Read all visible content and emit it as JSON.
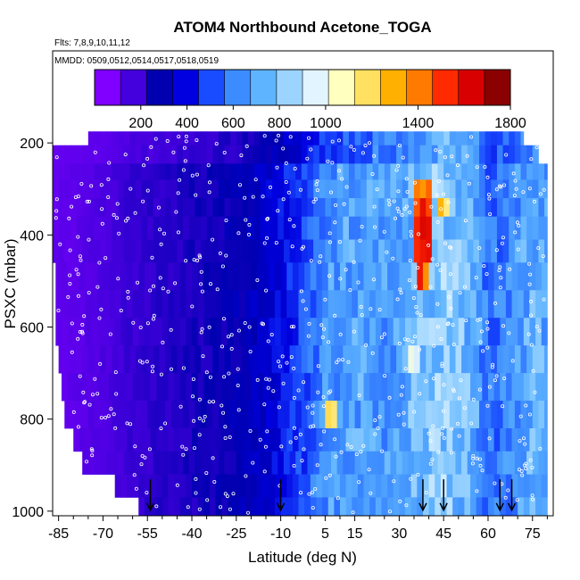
{
  "chart_data": {
    "type": "heatmap",
    "title": "ATOM4 Northbound Acetone_TOGA",
    "subtitle_flights": "Flts: 7,8,9,10,11,12",
    "subtitle_dates": "MMDD: 0509,0512,0514,0517,0518,0519",
    "xlabel": "Latitude (deg N)",
    "ylabel": "PSXC (mbar)",
    "x_ticks": [
      -85,
      -70,
      -55,
      -40,
      -25,
      -10,
      5,
      15,
      30,
      45,
      60,
      75
    ],
    "y_ticks": [
      200,
      400,
      600,
      800,
      1000
    ],
    "xlim": [
      -87,
      82
    ],
    "ylim": [
      1010,
      0
    ],
    "colorbar": {
      "min": 0,
      "max": 1800,
      "tick_labels": [
        200,
        400,
        600,
        800,
        1000,
        1400,
        1800
      ],
      "colors": [
        "#7f00ff",
        "#4400dd",
        "#0000b0",
        "#0000e0",
        "#1a4cff",
        "#3d8cff",
        "#5fb4ff",
        "#9cd4ff",
        "#e2f4ff",
        "#ffffbf",
        "#ffe060",
        "#ffb000",
        "#ff7a00",
        "#ff2a00",
        "#d80000",
        "#8b0000"
      ]
    },
    "pressure_bands": [
      {
        "p_top": 175,
        "p_bot": 205
      },
      {
        "p_top": 205,
        "p_bot": 245
      },
      {
        "p_top": 245,
        "p_bot": 280
      },
      {
        "p_top": 280,
        "p_bot": 320
      },
      {
        "p_top": 320,
        "p_bot": 360
      },
      {
        "p_top": 360,
        "p_bot": 410
      },
      {
        "p_top": 410,
        "p_bot": 460
      },
      {
        "p_top": 460,
        "p_bot": 520
      },
      {
        "p_top": 520,
        "p_bot": 580
      },
      {
        "p_top": 580,
        "p_bot": 640
      },
      {
        "p_top": 640,
        "p_bot": 700
      },
      {
        "p_top": 700,
        "p_bot": 760
      },
      {
        "p_top": 760,
        "p_bot": 820
      },
      {
        "p_top": 820,
        "p_bot": 870
      },
      {
        "p_top": 870,
        "p_bot": 920
      },
      {
        "p_top": 920,
        "p_bot": 970
      },
      {
        "p_top": 970,
        "p_bot": 1010
      }
    ],
    "band_lat_ranges": [
      [
        -75,
        72
      ],
      [
        -87,
        77
      ],
      [
        -87,
        80
      ],
      [
        -87,
        80
      ],
      [
        -87,
        80
      ],
      [
        -87,
        80
      ],
      [
        -87,
        80
      ],
      [
        -86,
        80
      ],
      [
        -86,
        80
      ],
      [
        -86,
        80
      ],
      [
        -85,
        80
      ],
      [
        -84,
        80
      ],
      [
        -83,
        80
      ],
      [
        -80,
        80
      ],
      [
        -77,
        80
      ],
      [
        -66,
        80
      ],
      [
        -58,
        80
      ]
    ],
    "lat_profile": {
      "lats": [
        -87,
        -80,
        -70,
        -60,
        -52,
        -45,
        -40,
        -30,
        -20,
        -10,
        0,
        5,
        10,
        15,
        20,
        25,
        30,
        35,
        40,
        45,
        50,
        55,
        60,
        65,
        70,
        75,
        80
      ],
      "values": [
        60,
        70,
        100,
        140,
        160,
        180,
        190,
        220,
        260,
        360,
        500,
        620,
        640,
        660,
        650,
        640,
        660,
        720,
        760,
        780,
        740,
        700,
        520,
        560,
        620,
        700,
        660
      ]
    },
    "hotspots": [
      {
        "lat": 38,
        "p_top": 300,
        "p_bot": 500,
        "value": 1600
      },
      {
        "lat": 45,
        "p_top": 310,
        "p_bot": 350,
        "value": 1300
      },
      {
        "lat": 7,
        "p_top": 760,
        "p_bot": 820,
        "value": 1200
      },
      {
        "lat": 35,
        "p_top": 640,
        "p_bot": 700,
        "value": 1000
      }
    ],
    "arrows_lat": [
      -54,
      -10,
      38,
      45,
      64,
      68
    ]
  }
}
